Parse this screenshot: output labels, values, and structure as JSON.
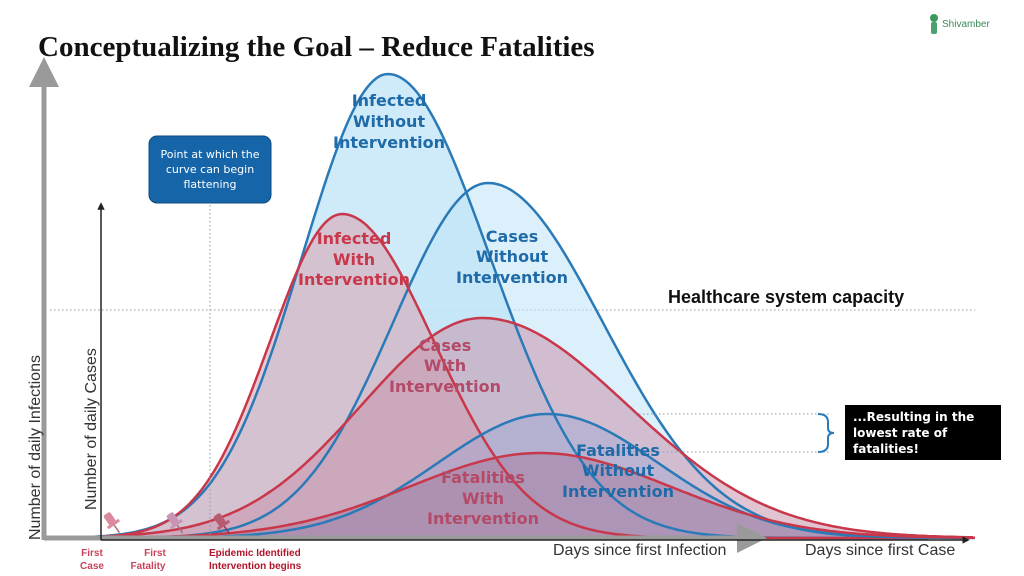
{
  "title": "Conceptualizing the Goal – Reduce Fatalities",
  "logo": {
    "text": "Shivamber"
  },
  "axes": {
    "y_outer": "Number of daily Infections",
    "y_inner": "Number of daily Cases",
    "x_infection": "Days since first Infection",
    "x_case": "Days since first Case"
  },
  "capacity_label": "Healthcare system capacity",
  "curves": {
    "infected_without": [
      "Infected",
      "Without",
      "Intervention"
    ],
    "infected_with": [
      "Infected",
      "With",
      "Intervention"
    ],
    "cases_without": [
      "Cases",
      "Without",
      "Intervention"
    ],
    "cases_with": [
      "Cases",
      "With",
      "Intervention"
    ],
    "fatalities_without": [
      "Fatalities",
      "Without",
      "Intervention"
    ],
    "fatalities_with": [
      "Fatalities",
      "With",
      "Intervention"
    ]
  },
  "callout": [
    "Point at which the",
    "curve can begin",
    "flattening"
  ],
  "result_box": [
    "...Resulting in the",
    "lowest rate of",
    "fatalities!"
  ],
  "markers": {
    "first_case": [
      "First",
      "Case"
    ],
    "first_fatality": [
      "First",
      "Fatality"
    ],
    "epidemic": [
      "Epidemic Identified",
      "Intervention begins"
    ]
  },
  "colors": {
    "blue": "#2a7ab8",
    "blue_fill": "#bfe3f7",
    "red": "#c8374a",
    "red_fill": "#d7a3b3",
    "callout_bg": "#1565a8",
    "result_bg": "#000000"
  }
}
